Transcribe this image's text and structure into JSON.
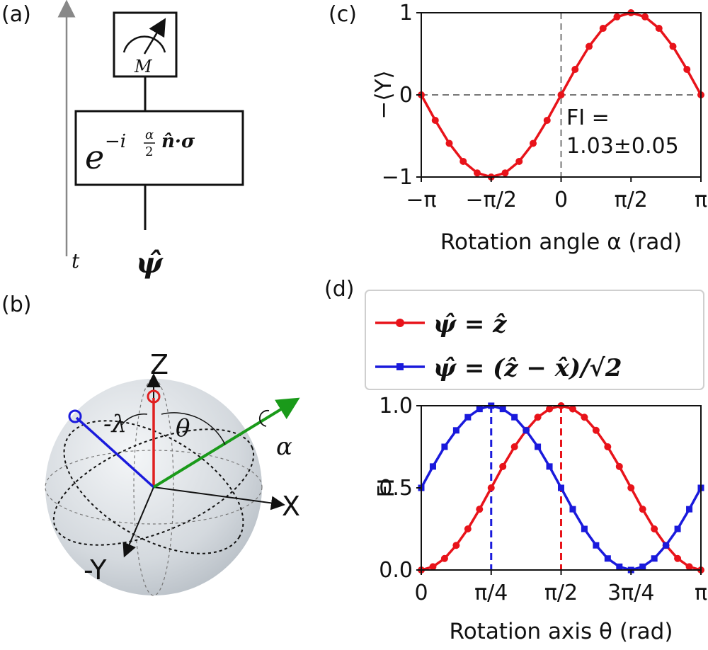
{
  "panels": {
    "a": "(a)",
    "b": "(b)",
    "c": "(c)",
    "d": "(d)"
  },
  "circuit": {
    "time_label": "t",
    "meter_label": "M",
    "gate_base": "e",
    "gate_exponent": "−i",
    "gate_frac_num": "α",
    "gate_frac_den": "2",
    "gate_rest": "n̂·σ",
    "input_state": "ψ̂"
  },
  "bloch": {
    "axis_z": "Z",
    "axis_x": "X",
    "axis_y": "-Y",
    "lambda_label": "-λ",
    "theta_label": "θ",
    "alpha_label": "α",
    "colors": {
      "red": "#e02020",
      "blue": "#1a1adc",
      "green": "#1a9a1a",
      "sphere": "#d6dbe0"
    }
  },
  "chart_data": [
    {
      "type": "line",
      "panel": "c",
      "xlabel": "Rotation angle α (rad)",
      "ylabel": "−⟨Y⟩",
      "xlim": [
        -3.14159,
        3.14159
      ],
      "ylim": [
        -1,
        1
      ],
      "xticks": [
        "−π",
        "−π/2",
        "0",
        "π/2",
        "π"
      ],
      "yticks": [
        "−1",
        "0",
        "1"
      ],
      "annotation": [
        "FI =",
        "1.03±0.05"
      ],
      "guides": {
        "vertical_x": 0,
        "horizontal_y": 0,
        "style": "dashed"
      },
      "series": [
        {
          "color": "#e8131a",
          "x": [
            -3.1416,
            -2.8274,
            -2.5133,
            -2.1991,
            -1.885,
            -1.5708,
            -1.2566,
            -0.9425,
            -0.6283,
            -0.3142,
            0.0,
            0.3142,
            0.6283,
            0.9425,
            1.2566,
            1.5708,
            1.885,
            2.1991,
            2.5133,
            2.8274,
            3.1416
          ],
          "y": [
            0.0,
            -0.31,
            -0.59,
            -0.81,
            -0.95,
            -1.0,
            -0.95,
            -0.81,
            -0.59,
            -0.31,
            0.0,
            0.31,
            0.59,
            0.81,
            0.95,
            1.0,
            0.95,
            0.81,
            0.59,
            0.31,
            0.0
          ]
        }
      ]
    },
    {
      "type": "line",
      "panel": "d",
      "xlabel": "Rotation axis θ (rad)",
      "ylabel": "FI",
      "xlim": [
        0,
        3.14159
      ],
      "ylim": [
        0,
        1
      ],
      "xticks": [
        "0",
        "π/4",
        "π/2",
        "3π/4",
        "π"
      ],
      "yticks": [
        "0.0",
        "0.5",
        "1.0"
      ],
      "legend_position": "top",
      "guides": [
        {
          "x": 0.7854,
          "color": "#1a1adc",
          "style": "dashed"
        },
        {
          "x": 1.5708,
          "color": "#e8131a",
          "style": "dashed"
        }
      ],
      "series": [
        {
          "name": "ψ̂ = ẑ",
          "color": "#e8131a",
          "marker": "circle",
          "x": [
            0.0,
            0.1309,
            0.2618,
            0.3927,
            0.5236,
            0.6545,
            0.7854,
            0.9163,
            1.0472,
            1.1781,
            1.309,
            1.4399,
            1.5708,
            1.7017,
            1.8326,
            1.9635,
            2.0944,
            2.2253,
            2.3562,
            2.4871,
            2.618,
            2.7489,
            2.8798,
            3.0107,
            3.1416
          ],
          "y": [
            0.0,
            0.02,
            0.07,
            0.15,
            0.25,
            0.37,
            0.5,
            0.63,
            0.75,
            0.85,
            0.93,
            0.98,
            1.0,
            0.98,
            0.93,
            0.85,
            0.75,
            0.63,
            0.5,
            0.37,
            0.25,
            0.15,
            0.07,
            0.02,
            0.0
          ]
        },
        {
          "name": "ψ̂ = (ẑ − x̂)/√2",
          "color": "#1a1adc",
          "marker": "square",
          "x": [
            0.0,
            0.1309,
            0.2618,
            0.3927,
            0.5236,
            0.6545,
            0.7854,
            0.9163,
            1.0472,
            1.1781,
            1.309,
            1.4399,
            1.5708,
            1.7017,
            1.8326,
            1.9635,
            2.0944,
            2.2253,
            2.3562,
            2.4871,
            2.618,
            2.7489,
            2.8798,
            3.0107,
            3.1416
          ],
          "y": [
            0.5,
            0.63,
            0.75,
            0.85,
            0.93,
            0.98,
            1.0,
            0.98,
            0.93,
            0.85,
            0.75,
            0.63,
            0.5,
            0.37,
            0.25,
            0.15,
            0.07,
            0.02,
            0.0,
            0.02,
            0.07,
            0.15,
            0.25,
            0.37,
            0.5
          ]
        }
      ]
    }
  ]
}
